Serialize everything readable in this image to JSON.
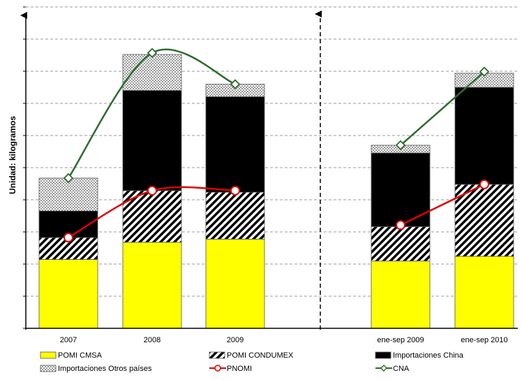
{
  "chart_data": {
    "type": "bar",
    "stacked": true,
    "ylabel": "Unidad: kilogramos",
    "ylim": [
      0,
      10
    ],
    "grid": true,
    "legend_position": "bottom",
    "categories": [
      "2007",
      "2008",
      "2009",
      "ene-sep 2009",
      "ene-sep 2010"
    ],
    "series": [
      {
        "name": "POMI CMSA",
        "kind": "bar",
        "pattern": "yellow",
        "color": "#ffff00",
        "values": [
          2.2,
          2.75,
          2.85,
          2.15,
          2.3
        ]
      },
      {
        "name": "POMI CONDUMEX",
        "kind": "bar",
        "pattern": "hatch",
        "color": "#000000",
        "values": [
          0.7,
          1.65,
          1.5,
          1.1,
          2.3
        ]
      },
      {
        "name": "Importaciones China",
        "kind": "bar",
        "pattern": "solid",
        "color": "#000000",
        "values": [
          0.85,
          3.2,
          3.05,
          2.35,
          3.1
        ]
      },
      {
        "name": "Importaciones Otros países",
        "kind": "bar",
        "pattern": "dots",
        "color": "#cccccc",
        "values": [
          1.05,
          1.15,
          0.4,
          0.25,
          0.45
        ]
      },
      {
        "name": "PNOMI",
        "kind": "line",
        "color": "#e00000",
        "values": [
          2.9,
          4.4,
          4.4,
          3.3,
          4.6
        ]
      },
      {
        "name": "CNA",
        "kind": "line",
        "color": "#2e6b2e",
        "values": [
          4.8,
          8.8,
          7.8,
          5.85,
          8.2
        ]
      }
    ],
    "period_divider": {
      "between": [
        "2009",
        "ene-sep 2009"
      ],
      "style": "dashed-arrow"
    }
  }
}
